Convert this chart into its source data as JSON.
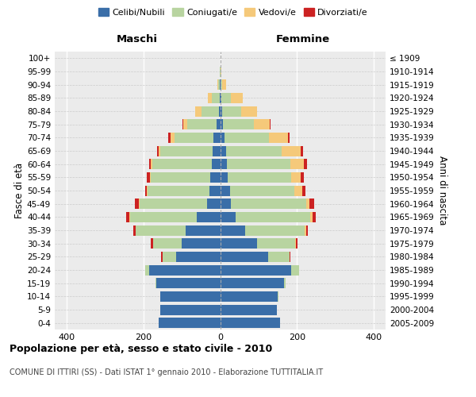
{
  "age_groups": [
    "0-4",
    "5-9",
    "10-14",
    "15-19",
    "20-24",
    "25-29",
    "30-34",
    "35-39",
    "40-44",
    "45-49",
    "50-54",
    "55-59",
    "60-64",
    "65-69",
    "70-74",
    "75-79",
    "80-84",
    "85-89",
    "90-94",
    "95-99",
    "100+"
  ],
  "birth_years": [
    "2005-2009",
    "2000-2004",
    "1995-1999",
    "1990-1994",
    "1985-1989",
    "1980-1984",
    "1975-1979",
    "1970-1974",
    "1965-1969",
    "1960-1964",
    "1955-1959",
    "1950-1954",
    "1945-1949",
    "1940-1944",
    "1935-1939",
    "1930-1934",
    "1925-1929",
    "1920-1924",
    "1915-1919",
    "1910-1914",
    "≤ 1909"
  ],
  "males": {
    "celibe": [
      160,
      155,
      155,
      165,
      185,
      115,
      100,
      90,
      60,
      35,
      28,
      25,
      22,
      20,
      18,
      10,
      4,
      2,
      1,
      0,
      0
    ],
    "coniugato": [
      0,
      0,
      1,
      3,
      10,
      35,
      75,
      130,
      175,
      175,
      160,
      155,
      155,
      135,
      100,
      75,
      45,
      20,
      5,
      1,
      0
    ],
    "vedovo": [
      0,
      0,
      0,
      0,
      0,
      0,
      0,
      0,
      1,
      2,
      2,
      3,
      3,
      5,
      10,
      10,
      15,
      10,
      2,
      0,
      0
    ],
    "divorziato": [
      0,
      0,
      0,
      0,
      0,
      3,
      5,
      5,
      8,
      10,
      5,
      8,
      5,
      3,
      7,
      3,
      0,
      0,
      0,
      0,
      0
    ]
  },
  "females": {
    "nubile": [
      155,
      148,
      150,
      165,
      185,
      125,
      95,
      65,
      40,
      28,
      25,
      20,
      18,
      15,
      12,
      8,
      5,
      3,
      1,
      0,
      0
    ],
    "coniugata": [
      0,
      0,
      1,
      5,
      20,
      55,
      100,
      155,
      195,
      195,
      168,
      165,
      165,
      145,
      115,
      80,
      50,
      25,
      5,
      1,
      0
    ],
    "vedova": [
      0,
      0,
      0,
      0,
      0,
      1,
      2,
      3,
      5,
      10,
      20,
      25,
      35,
      50,
      50,
      40,
      40,
      30,
      10,
      2,
      1
    ],
    "divorziata": [
      0,
      0,
      0,
      0,
      0,
      2,
      5,
      5,
      8,
      12,
      8,
      8,
      8,
      5,
      3,
      2,
      0,
      0,
      0,
      0,
      0
    ]
  },
  "colors": {
    "celibe": "#3a6ea8",
    "coniugato": "#b8d4a0",
    "vedovo": "#f5c97a",
    "divorziato": "#cc2222"
  },
  "xlim": 430,
  "title": "Popolazione per età, sesso e stato civile - 2010",
  "subtitle": "COMUNE DI ITTIRI (SS) - Dati ISTAT 1° gennaio 2010 - Elaborazione TUTTITALIA.IT",
  "ylabel_left": "Fasce di età",
  "ylabel_right": "Anni di nascita",
  "xlabel_left": "Maschi",
  "xlabel_right": "Femmine",
  "legend_labels": [
    "Celibi/Nubili",
    "Coniugati/e",
    "Vedovi/e",
    "Divorziati/e"
  ],
  "plot_bg": "#ebebeb"
}
